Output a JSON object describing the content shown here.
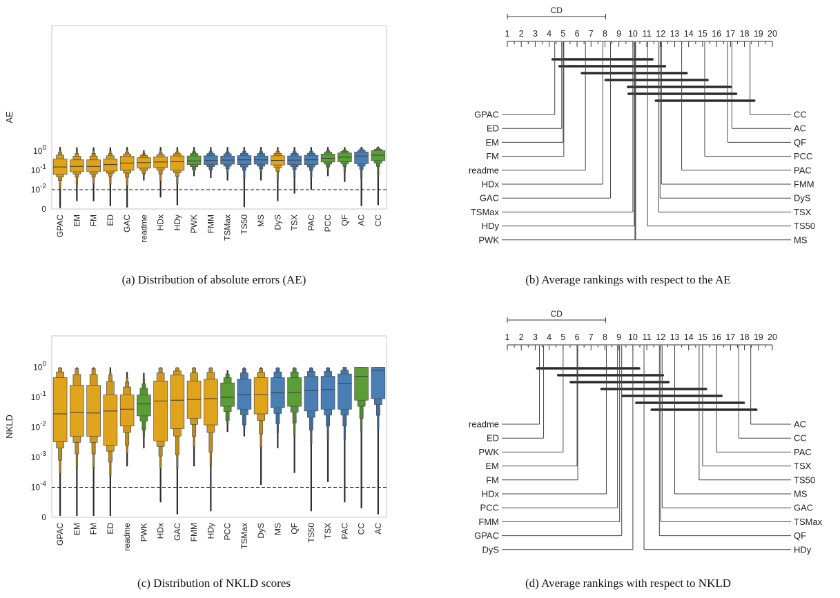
{
  "captions": {
    "a": "(a) Distribution of absolute errors (AE)",
    "b": "(b) Average rankings with respect to the AE",
    "c": "(c) Distribution of NKLD scores",
    "d": "(d) Average rankings with respect to NKLD"
  },
  "colors": {
    "aggregative": "#e0a31c",
    "non_aggregative": "#4a7fb5",
    "green": "#5a9e35"
  },
  "chart_data": [
    {
      "id": "a",
      "type": "boxen",
      "ylabel": "AE",
      "yscale": "symlog",
      "ylim": [
        0,
        1.8
      ],
      "yticks": [
        {
          "v": 0,
          "label": "0"
        },
        {
          "v": 0.01,
          "label": "10^-2"
        },
        {
          "v": 0.1,
          "label": "10^-1"
        },
        {
          "v": 1,
          "label": "10^0"
        }
      ],
      "reference_line": 0.01,
      "boxes": [
        {
          "name": "GPAC",
          "color": "#e0a31c",
          "median": 0.15,
          "q1": 0.062,
          "q3": 0.39,
          "o1": 0.03,
          "o2": 0.86,
          "lo": 0.0005,
          "hi": 1.6
        },
        {
          "name": "EM",
          "color": "#e0a31c",
          "median": 0.16,
          "q1": 0.085,
          "q3": 0.35,
          "o1": 0.045,
          "o2": 0.74,
          "lo": 0.004,
          "hi": 1.55
        },
        {
          "name": "FM",
          "color": "#e0a31c",
          "median": 0.16,
          "q1": 0.085,
          "q3": 0.35,
          "o1": 0.045,
          "o2": 0.76,
          "lo": 0.004,
          "hi": 1.55
        },
        {
          "name": "ED",
          "color": "#e0a31c",
          "median": 0.2,
          "q1": 0.092,
          "q3": 0.39,
          "o1": 0.05,
          "o2": 0.75,
          "lo": 0.0015,
          "hi": 1.55
        },
        {
          "name": "GAC",
          "color": "#e0a31c",
          "median": 0.24,
          "q1": 0.1,
          "q3": 0.54,
          "o1": 0.044,
          "o2": 0.88,
          "lo": 0.0008,
          "hi": 1.6
        },
        {
          "name": "readme",
          "color": "#e0a31c",
          "median": 0.25,
          "q1": 0.13,
          "q3": 0.45,
          "o1": 0.07,
          "o2": 0.72,
          "lo": 0.03,
          "hi": 1.1
        },
        {
          "name": "HDx",
          "color": "#e0a31c",
          "median": 0.27,
          "q1": 0.14,
          "q3": 0.5,
          "o1": 0.065,
          "o2": 0.8,
          "lo": 0.006,
          "hi": 1.6
        },
        {
          "name": "HDy",
          "color": "#e0a31c",
          "median": 0.28,
          "q1": 0.1,
          "q3": 0.56,
          "o1": 0.05,
          "o2": 0.9,
          "lo": 0.002,
          "hi": 1.6
        },
        {
          "name": "PWK",
          "color": "#5a9e35",
          "median": 0.31,
          "q1": 0.2,
          "q3": 0.56,
          "o1": 0.11,
          "o2": 0.93,
          "lo": 0.05,
          "hi": 1.6
        },
        {
          "name": "FMM",
          "color": "#4a7fb5",
          "median": 0.32,
          "q1": 0.2,
          "q3": 0.57,
          "o1": 0.11,
          "o2": 0.92,
          "lo": 0.04,
          "hi": 1.6
        },
        {
          "name": "TSMax",
          "color": "#4a7fb5",
          "median": 0.34,
          "q1": 0.21,
          "q3": 0.55,
          "o1": 0.12,
          "o2": 0.9,
          "lo": 0.03,
          "hi": 1.6
        },
        {
          "name": "TS50",
          "color": "#4a7fb5",
          "median": 0.35,
          "q1": 0.2,
          "q3": 0.58,
          "o1": 0.1,
          "o2": 0.95,
          "lo": 0.001,
          "hi": 1.6
        },
        {
          "name": "MS",
          "color": "#4a7fb5",
          "median": 0.35,
          "q1": 0.21,
          "q3": 0.55,
          "o1": 0.12,
          "o2": 0.93,
          "lo": 0.03,
          "hi": 1.6
        },
        {
          "name": "DyS",
          "color": "#e0a31c",
          "median": 0.33,
          "q1": 0.19,
          "q3": 0.57,
          "o1": 0.09,
          "o2": 0.95,
          "lo": 0.004,
          "hi": 1.6
        },
        {
          "name": "TSX",
          "color": "#4a7fb5",
          "median": 0.34,
          "q1": 0.2,
          "q3": 0.56,
          "o1": 0.11,
          "o2": 0.93,
          "lo": 0.008,
          "hi": 1.6
        },
        {
          "name": "PAC",
          "color": "#4a7fb5",
          "median": 0.35,
          "q1": 0.2,
          "q3": 0.6,
          "o1": 0.1,
          "o2": 0.95,
          "lo": 0.01,
          "hi": 1.6
        },
        {
          "name": "PCC",
          "color": "#5a9e35",
          "median": 0.42,
          "q1": 0.27,
          "q3": 0.7,
          "o1": 0.15,
          "o2": 1.05,
          "lo": 0.05,
          "hi": 1.6
        },
        {
          "name": "QF",
          "color": "#5a9e35",
          "median": 0.48,
          "q1": 0.28,
          "q3": 0.8,
          "o1": 0.16,
          "o2": 1.15,
          "lo": 0.025,
          "hi": 1.6
        },
        {
          "name": "AC",
          "color": "#4a7fb5",
          "median": 0.55,
          "q1": 0.22,
          "q3": 0.9,
          "o1": 0.11,
          "o2": 1.3,
          "lo": 0.0015,
          "hi": 1.65
        },
        {
          "name": "CC",
          "color": "#5a9e35",
          "median": 0.62,
          "q1": 0.32,
          "q3": 1.05,
          "o1": 0.16,
          "o2": 1.45,
          "lo": 0.002,
          "hi": 1.7
        }
      ]
    },
    {
      "id": "b",
      "type": "critical_difference",
      "scale": [
        1,
        20
      ],
      "cd_label": "CD",
      "cd": [
        1,
        8.05
      ],
      "left": [
        {
          "name": "GPAC",
          "rank": 4.4
        },
        {
          "name": "ED",
          "rank": 4.9
        },
        {
          "name": "EM",
          "rank": 5.0
        },
        {
          "name": "FM",
          "rank": 5.05
        },
        {
          "name": "readme",
          "rank": 6.6
        },
        {
          "name": "HDx",
          "rank": 7.85
        },
        {
          "name": "GAC",
          "rank": 8.4
        },
        {
          "name": "TSMax",
          "rank": 10.0
        },
        {
          "name": "HDy",
          "rank": 10.1
        },
        {
          "name": "PWK",
          "rank": 10.15
        }
      ],
      "right": [
        {
          "name": "CC",
          "rank": 18.4
        },
        {
          "name": "AC",
          "rank": 17.1
        },
        {
          "name": "QF",
          "rank": 16.8
        },
        {
          "name": "PCC",
          "rank": 15.15
        },
        {
          "name": "PAC",
          "rank": 13.5
        },
        {
          "name": "FMM",
          "rank": 12.05
        },
        {
          "name": "DyS",
          "rank": 11.95
        },
        {
          "name": "TSX",
          "rank": 11.85
        },
        {
          "name": "TS50",
          "rank": 11.05
        },
        {
          "name": "MS",
          "rank": 10.2
        }
      ],
      "cliques": [
        [
          4.4,
          11.25
        ],
        [
          4.9,
          12.15
        ],
        [
          6.5,
          13.7
        ],
        [
          8.2,
          15.2
        ],
        [
          9.8,
          16.85
        ],
        [
          9.85,
          17.25
        ],
        [
          11.8,
          18.55
        ]
      ]
    },
    {
      "id": "c",
      "type": "boxen",
      "ylabel": "NKLD",
      "yscale": "symlog",
      "ylim": [
        0,
        1.0
      ],
      "yticks": [
        {
          "v": 0,
          "label": "0"
        },
        {
          "v": 0.0001,
          "label": "10^-4"
        },
        {
          "v": 0.001,
          "label": "10^-3"
        },
        {
          "v": 0.01,
          "label": "10^-2"
        },
        {
          "v": 0.1,
          "label": "10^-1"
        },
        {
          "v": 1,
          "label": "10^0"
        }
      ],
      "reference_line": 0.0001,
      "boxes": [
        {
          "name": "GPAC",
          "color": "#e0a31c",
          "median": 0.028,
          "q1": 0.0033,
          "q3": 0.45,
          "o1": 0.0008,
          "o2": 0.95,
          "lo": 5e-06,
          "hi": 1
        },
        {
          "name": "EM",
          "color": "#e0a31c",
          "median": 0.031,
          "q1": 0.005,
          "q3": 0.25,
          "o1": 0.0013,
          "o2": 0.9,
          "lo": 5e-06,
          "hi": 1
        },
        {
          "name": "FM",
          "color": "#e0a31c",
          "median": 0.03,
          "q1": 0.005,
          "q3": 0.25,
          "o1": 0.0013,
          "o2": 0.9,
          "lo": 5e-06,
          "hi": 1
        },
        {
          "name": "ED",
          "color": "#e0a31c",
          "median": 0.035,
          "q1": 0.0025,
          "q3": 0.12,
          "o1": 0.0007,
          "o2": 0.55,
          "lo": 5e-06,
          "hi": 1
        },
        {
          "name": "readme",
          "color": "#e0a31c",
          "median": 0.04,
          "q1": 0.011,
          "q3": 0.12,
          "o1": 0.0025,
          "o2": 0.32,
          "lo": 0.0005,
          "hi": 0.7
        },
        {
          "name": "PWK",
          "color": "#5a9e35",
          "median": 0.06,
          "q1": 0.024,
          "q3": 0.12,
          "o1": 0.008,
          "o2": 0.28,
          "lo": 0.002,
          "hi": 0.65
        },
        {
          "name": "HDx",
          "color": "#e0a31c",
          "median": 0.075,
          "q1": 0.0035,
          "q3": 0.35,
          "o1": 0.0011,
          "o2": 0.95,
          "lo": 5e-05,
          "hi": 1
        },
        {
          "name": "GAC",
          "color": "#e0a31c",
          "median": 0.08,
          "q1": 0.009,
          "q3": 0.55,
          "o1": 0.0012,
          "o2": 0.95,
          "lo": 1e-05,
          "hi": 1
        },
        {
          "name": "FMM",
          "color": "#e0a31c",
          "median": 0.085,
          "q1": 0.02,
          "q3": 0.35,
          "o1": 0.005,
          "o2": 0.95,
          "lo": 0.0005,
          "hi": 1
        },
        {
          "name": "HDy",
          "color": "#e0a31c",
          "median": 0.09,
          "q1": 0.012,
          "q3": 0.4,
          "o1": 0.0015,
          "o2": 0.95,
          "lo": 2e-05,
          "hi": 1
        },
        {
          "name": "PCC",
          "color": "#5a9e35",
          "median": 0.1,
          "q1": 0.05,
          "q3": 0.3,
          "o1": 0.017,
          "o2": 0.6,
          "lo": 0.007,
          "hi": 0.8
        },
        {
          "name": "TSMax",
          "color": "#4a7fb5",
          "median": 0.12,
          "q1": 0.04,
          "q3": 0.4,
          "o1": 0.012,
          "o2": 0.9,
          "lo": 0.005,
          "hi": 1
        },
        {
          "name": "DyS",
          "color": "#e0a31c",
          "median": 0.12,
          "q1": 0.028,
          "q3": 0.45,
          "o1": 0.006,
          "o2": 0.9,
          "lo": 0.00012,
          "hi": 1
        },
        {
          "name": "MS",
          "color": "#4a7fb5",
          "median": 0.14,
          "q1": 0.045,
          "q3": 0.45,
          "o1": 0.013,
          "o2": 0.95,
          "lo": 0.002,
          "hi": 1
        },
        {
          "name": "QF",
          "color": "#5a9e35",
          "median": 0.145,
          "q1": 0.05,
          "q3": 0.45,
          "o1": 0.014,
          "o2": 0.95,
          "lo": 0.0003,
          "hi": 1
        },
        {
          "name": "TS50",
          "color": "#4a7fb5",
          "median": 0.17,
          "q1": 0.035,
          "q3": 0.5,
          "o1": 0.008,
          "o2": 0.95,
          "lo": 2e-05,
          "hi": 1
        },
        {
          "name": "TSX",
          "color": "#4a7fb5",
          "median": 0.18,
          "q1": 0.04,
          "q3": 0.5,
          "o1": 0.011,
          "o2": 0.95,
          "lo": 0.00015,
          "hi": 1
        },
        {
          "name": "PAC",
          "color": "#4a7fb5",
          "median": 0.28,
          "q1": 0.04,
          "q3": 0.6,
          "o1": 0.011,
          "o2": 1.0,
          "lo": 5e-05,
          "hi": 1
        },
        {
          "name": "CC",
          "color": "#5a9e35",
          "median": 0.5,
          "q1": 0.08,
          "q3": 1.0,
          "o1": 0.02,
          "o2": 1.0,
          "lo": 3e-05,
          "hi": 1
        },
        {
          "name": "AC",
          "color": "#4a7fb5",
          "median": 0.8,
          "q1": 0.09,
          "q3": 1.0,
          "o1": 0.025,
          "o2": 1.0,
          "lo": 1e-05,
          "hi": 1
        }
      ]
    },
    {
      "id": "d",
      "type": "critical_difference",
      "scale": [
        1,
        20
      ],
      "cd_label": "CD",
      "cd": [
        1,
        8.05
      ],
      "left": [
        {
          "name": "readme",
          "rank": 3.3
        },
        {
          "name": "ED",
          "rank": 3.6
        },
        {
          "name": "PWK",
          "rank": 5.0
        },
        {
          "name": "EM",
          "rank": 6.0
        },
        {
          "name": "FM",
          "rank": 6.05
        },
        {
          "name": "HDx",
          "rank": 8.1
        },
        {
          "name": "PCC",
          "rank": 8.9
        },
        {
          "name": "FMM",
          "rank": 9.05
        },
        {
          "name": "GPAC",
          "rank": 9.2
        },
        {
          "name": "DyS",
          "rank": 10.0
        }
      ],
      "right": [
        {
          "name": "AC",
          "rank": 18.45
        },
        {
          "name": "CC",
          "rank": 17.6
        },
        {
          "name": "PAC",
          "rank": 16.0
        },
        {
          "name": "TSX",
          "rank": 15.0
        },
        {
          "name": "TS50",
          "rank": 14.75
        },
        {
          "name": "MS",
          "rank": 13.0
        },
        {
          "name": "GAC",
          "rank": 12.1
        },
        {
          "name": "TSMax",
          "rank": 12.0
        },
        {
          "name": "QF",
          "rank": 11.9
        },
        {
          "name": "HDy",
          "rank": 10.8
        }
      ],
      "cliques": [
        [
          3.3,
          10.3
        ],
        [
          4.8,
          12.0
        ],
        [
          5.7,
          12.4
        ],
        [
          7.9,
          15.1
        ],
        [
          9.4,
          16.2
        ],
        [
          10.4,
          17.8
        ],
        [
          11.5,
          18.7
        ]
      ]
    }
  ]
}
